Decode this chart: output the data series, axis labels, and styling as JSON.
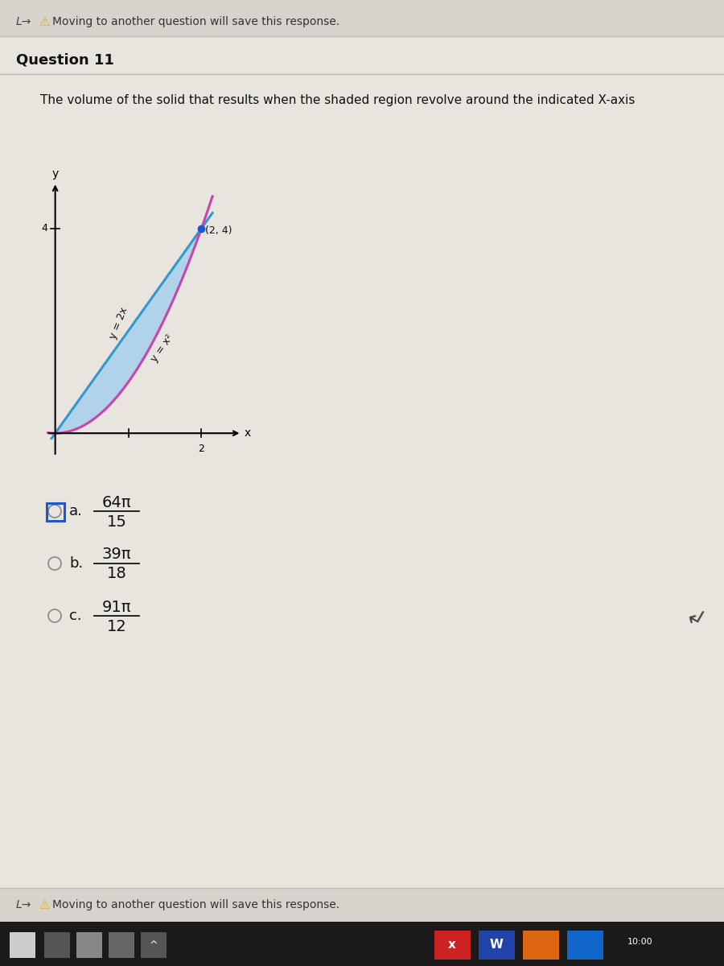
{
  "bg_color": "#d6d2cc",
  "page_bg": "#e8e4de",
  "header_text": "Moving to another question will save this response.",
  "question_label": "Question 11",
  "question_text": "The volume of the solid that results when the shaded region revolve around the indicated X-axis",
  "graph": {
    "point_label": "(2, 4)",
    "line1_label": "y = 2x",
    "line2_label": "y = x²",
    "line1_color": "#3399cc",
    "line2_color": "#cc44aa",
    "shade_color": "#99ccee",
    "shade_alpha": 0.7,
    "dot_color": "#2255cc"
  },
  "choices": [
    {
      "label": "a",
      "numerator": "64π",
      "denominator": "15",
      "selected": true
    },
    {
      "label": "b",
      "numerator": "39π",
      "denominator": "18",
      "selected": false
    },
    {
      "label": "c",
      "numerator": "91π",
      "denominator": "12",
      "selected": false
    }
  ],
  "footer_text": "Moving to another question will save this response.",
  "taskbar_bg": "#1a1a1a",
  "taskbar_icons": [
    {
      "color": "#cccccc",
      "label": ""
    },
    {
      "color": "#333333",
      "label": ""
    },
    {
      "color": "#666666",
      "label": ""
    },
    {
      "color": "#444444",
      "label": ""
    },
    {
      "color": "#444444",
      "label": "^"
    }
  ],
  "taskbar_right_icons": [
    {
      "color": "#cc2222",
      "label": "x",
      "text_color": "#ffffff"
    },
    {
      "color": "#2244aa",
      "label": "W",
      "text_color": "#ffffff"
    },
    {
      "color": "#dd6611",
      "label": "",
      "text_color": "#ffffff"
    },
    {
      "color": "#1166cc",
      "label": "",
      "text_color": "#ffffff"
    }
  ]
}
